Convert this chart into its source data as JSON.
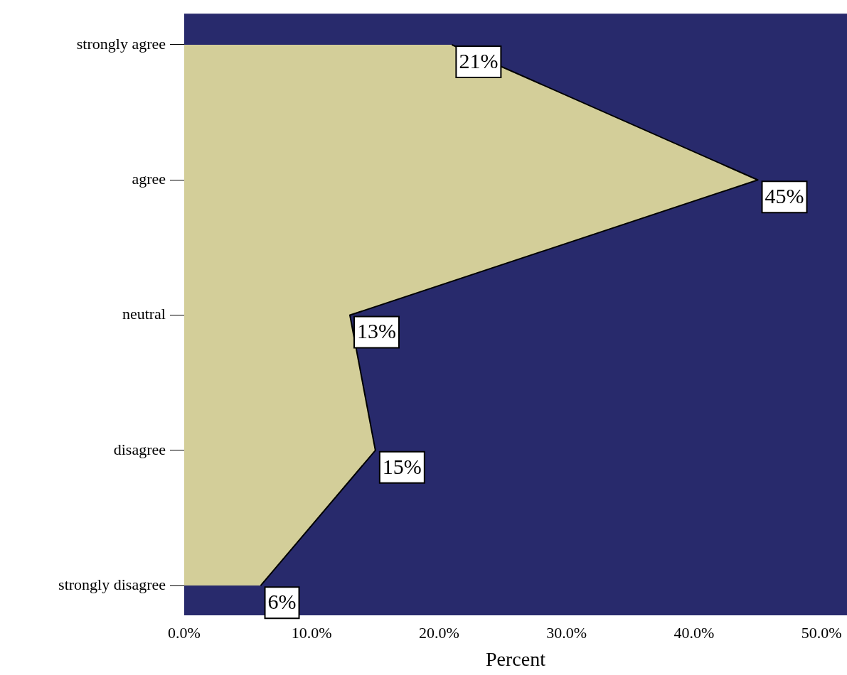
{
  "chart_data": {
    "type": "area",
    "orientation": "horizontal",
    "xlabel": "Percent",
    "categories": [
      "strongly agree",
      "agree",
      "neutral",
      "disagree",
      "strongly disagree"
    ],
    "values": [
      21,
      45,
      13,
      15,
      6
    ],
    "value_labels": [
      "21%",
      "45%",
      "13%",
      "15%",
      "6%"
    ],
    "color": "#d3ce99",
    "xlim": [
      0,
      52
    ],
    "xticks": [
      {
        "value": 0,
        "label": "0.0%"
      },
      {
        "value": 10,
        "label": "10.0%"
      },
      {
        "value": 20,
        "label": "20.0%"
      },
      {
        "value": 30,
        "label": "30.0%"
      },
      {
        "value": 40,
        "label": "40.0%"
      },
      {
        "value": 50,
        "label": "50.0%"
      }
    ]
  }
}
